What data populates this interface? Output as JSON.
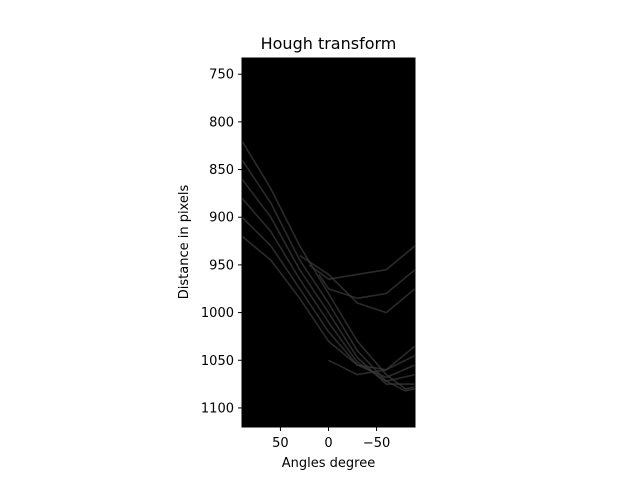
{
  "chart_data": {
    "type": "heatmap",
    "title": "Hough transform",
    "xlabel": "Angles degree",
    "ylabel": "Distance in pixels",
    "xlim": [
      90,
      -90
    ],
    "ylim": [
      1120,
      733
    ],
    "x_ticks": [
      50,
      0,
      -50
    ],
    "x_tick_labels": [
      "50",
      "0",
      "−50"
    ],
    "y_ticks": [
      750,
      800,
      850,
      900,
      950,
      1000,
      1050,
      1100
    ],
    "y_tick_labels": [
      "750",
      "800",
      "850",
      "900",
      "950",
      "1000",
      "1050",
      "1100"
    ],
    "colormap": "gray",
    "background_color": "#000000",
    "series": [
      {
        "values": [
          [
            90,
            820
          ],
          [
            60,
            870
          ],
          [
            30,
            930
          ],
          [
            0,
            980
          ],
          [
            -30,
            1030
          ],
          [
            -60,
            1065
          ],
          [
            -80,
            1080
          ],
          [
            -90,
            1078
          ]
        ]
      },
      {
        "values": [
          [
            90,
            840
          ],
          [
            60,
            885
          ],
          [
            30,
            945
          ],
          [
            0,
            990
          ],
          [
            -30,
            1040
          ],
          [
            -60,
            1072
          ],
          [
            -80,
            1082
          ],
          [
            -90,
            1080
          ]
        ]
      },
      {
        "values": [
          [
            90,
            860
          ],
          [
            60,
            900
          ],
          [
            30,
            955
          ],
          [
            0,
            1000
          ],
          [
            -30,
            1047
          ],
          [
            -60,
            1075
          ],
          [
            -90,
            1075
          ]
        ]
      },
      {
        "values": [
          [
            90,
            880
          ],
          [
            60,
            915
          ],
          [
            30,
            965
          ],
          [
            0,
            1010
          ],
          [
            -30,
            1052
          ],
          [
            -60,
            1072
          ],
          [
            -90,
            1065
          ]
        ]
      },
      {
        "values": [
          [
            90,
            900
          ],
          [
            60,
            930
          ],
          [
            30,
            975
          ],
          [
            0,
            1020
          ],
          [
            -30,
            1055
          ],
          [
            -60,
            1068
          ],
          [
            -90,
            1055
          ]
        ]
      },
      {
        "values": [
          [
            90,
            920
          ],
          [
            60,
            945
          ],
          [
            30,
            985
          ],
          [
            0,
            1030
          ],
          [
            -30,
            1055
          ],
          [
            -60,
            1060
          ],
          [
            -90,
            1045
          ]
        ]
      },
      {
        "values": [
          [
            30,
            940
          ],
          [
            0,
            960
          ],
          [
            -30,
            990
          ],
          [
            -60,
            1000
          ],
          [
            -90,
            975
          ]
        ]
      },
      {
        "values": [
          [
            20,
            950
          ],
          [
            0,
            965
          ],
          [
            -30,
            960
          ],
          [
            -60,
            955
          ],
          [
            -90,
            930
          ]
        ]
      },
      {
        "values": [
          [
            10,
            960
          ],
          [
            0,
            975
          ],
          [
            -30,
            985
          ],
          [
            -60,
            980
          ],
          [
            -90,
            955
          ]
        ]
      },
      {
        "values": [
          [
            0,
            1050
          ],
          [
            -30,
            1065
          ],
          [
            -60,
            1060
          ],
          [
            -90,
            1035
          ]
        ]
      }
    ]
  }
}
